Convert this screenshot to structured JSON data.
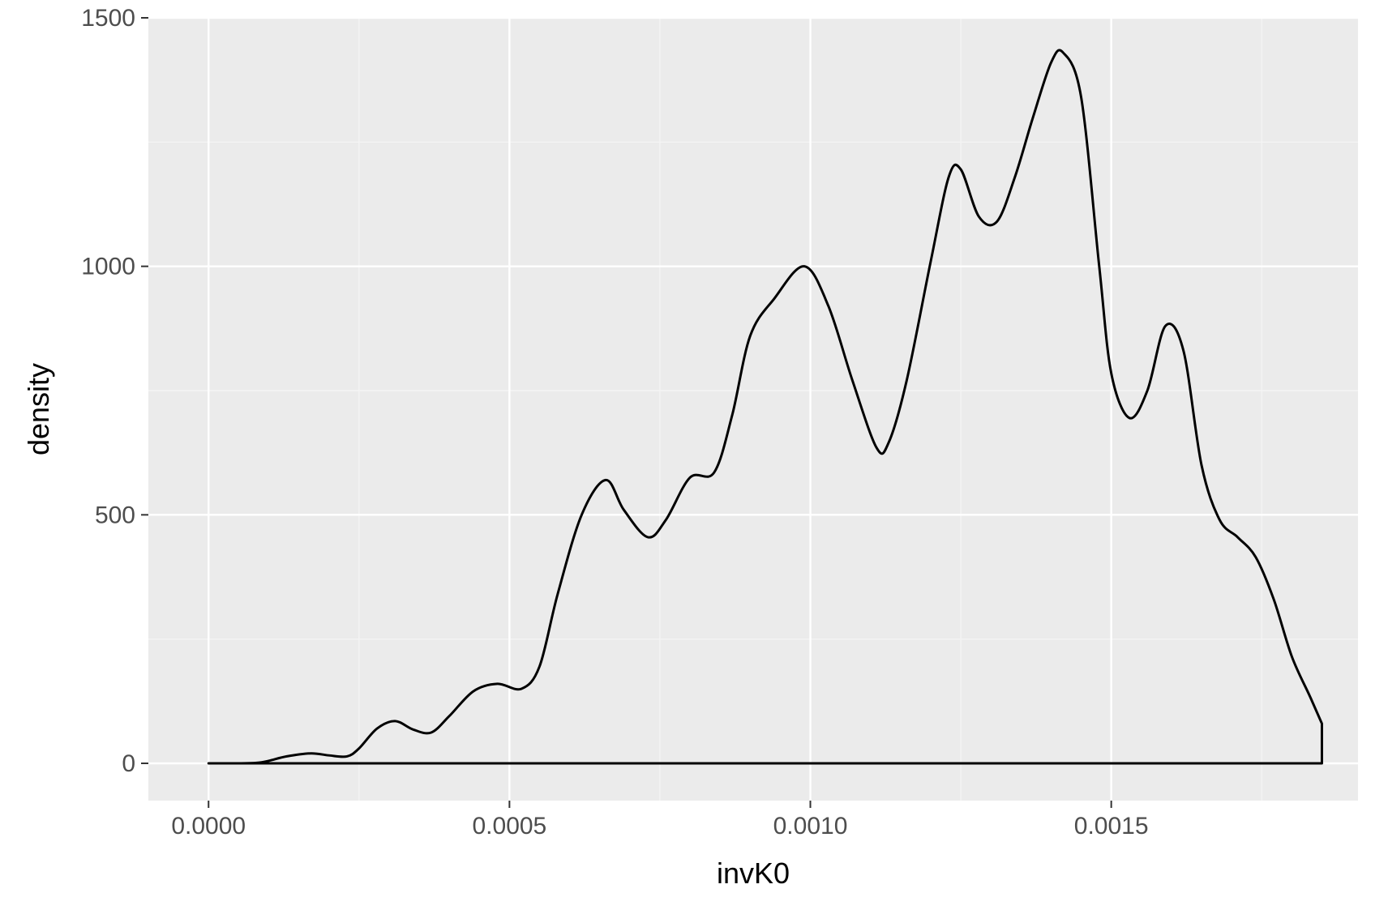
{
  "colors": {
    "panel_background": "#ebebeb",
    "major_grid": "#ffffff",
    "minor_grid": "#f5f5f5",
    "density_line": "#000000",
    "tick_label": "#4d4d4d",
    "axis_title": "#000000",
    "tick_mark": "#333333"
  },
  "chart_data": {
    "type": "area",
    "title": "",
    "xlabel": "invK0",
    "ylabel": "density",
    "xlim": [
      -0.0001,
      0.00191
    ],
    "ylim": [
      -75,
      1500
    ],
    "x_ticks": [
      0.0,
      0.0005,
      0.001,
      0.0015
    ],
    "x_tick_labels": [
      "0.0000",
      "0.0005",
      "0.0010",
      "0.0015"
    ],
    "y_ticks": [
      0,
      500,
      1000,
      1500
    ],
    "y_tick_labels": [
      "0",
      "500",
      "1000",
      "1500"
    ],
    "grid": true,
    "fill": "none",
    "series": [
      {
        "x": [
          0.0,
          5e-05,
          8e-05,
          0.0001,
          0.00013,
          0.00017,
          0.0002,
          0.00023,
          0.00025,
          0.00028,
          0.00031,
          0.00034,
          0.00037,
          0.0004,
          0.00044,
          0.00048,
          0.00052,
          0.00055,
          0.00058,
          0.00062,
          0.00066,
          0.00069,
          0.00073,
          0.00076,
          0.0008,
          0.00084,
          0.00087,
          0.0009,
          0.00094,
          0.00099,
          0.00103,
          0.00107,
          0.00111,
          0.00113,
          0.00116,
          0.0012,
          0.00123,
          0.00125,
          0.00128,
          0.00131,
          0.00134,
          0.00137,
          0.0014,
          0.00142,
          0.00145,
          0.00148,
          0.0015,
          0.00153,
          0.00156,
          0.00159,
          0.00162,
          0.00165,
          0.00168,
          0.00171,
          0.00174,
          0.00177,
          0.0018,
          0.00183,
          0.00185
        ],
        "y": [
          0,
          0,
          1,
          5,
          14,
          20,
          16,
          14,
          30,
          70,
          85,
          68,
          62,
          95,
          145,
          160,
          150,
          195,
          340,
          500,
          570,
          510,
          455,
          490,
          575,
          585,
          700,
          860,
          935,
          1000,
          920,
          770,
          635,
          645,
          770,
          1010,
          1180,
          1195,
          1100,
          1090,
          1180,
          1300,
          1410,
          1430,
          1340,
          1000,
          785,
          695,
          750,
          880,
          830,
          600,
          490,
          455,
          415,
          330,
          215,
          135,
          80
        ]
      }
    ]
  }
}
